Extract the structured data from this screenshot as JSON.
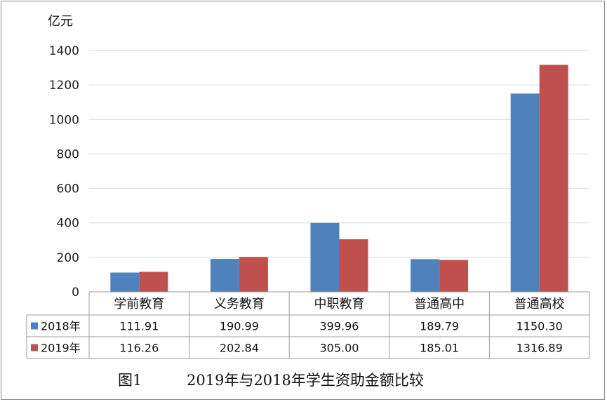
{
  "chart_data": {
    "type": "bar",
    "ylabel": "亿元",
    "ylim": [
      0,
      1400
    ],
    "yticks": [
      0,
      200,
      400,
      600,
      800,
      1000,
      1200,
      1400
    ],
    "grid": true,
    "categories": [
      "学前教育",
      "义务教育",
      "中职教育",
      "普通高中",
      "普通高校"
    ],
    "series": [
      {
        "name": "2018年",
        "color": "#4f81bd",
        "values": [
          111.91,
          190.99,
          399.96,
          189.79,
          1150.3
        ],
        "labels": [
          "111.91",
          "190.99",
          "399.96",
          "189.79",
          "1150.30"
        ]
      },
      {
        "name": "2019年",
        "color": "#c0504d",
        "values": [
          116.26,
          202.84,
          305.0,
          185.01,
          1316.89
        ],
        "labels": [
          "116.26",
          "202.84",
          "305.00",
          "185.01",
          "1316.89"
        ]
      }
    ],
    "legend": "data-table"
  },
  "caption": {
    "figure": "图1",
    "text": "2019年与2018年学生资助金额比较"
  }
}
